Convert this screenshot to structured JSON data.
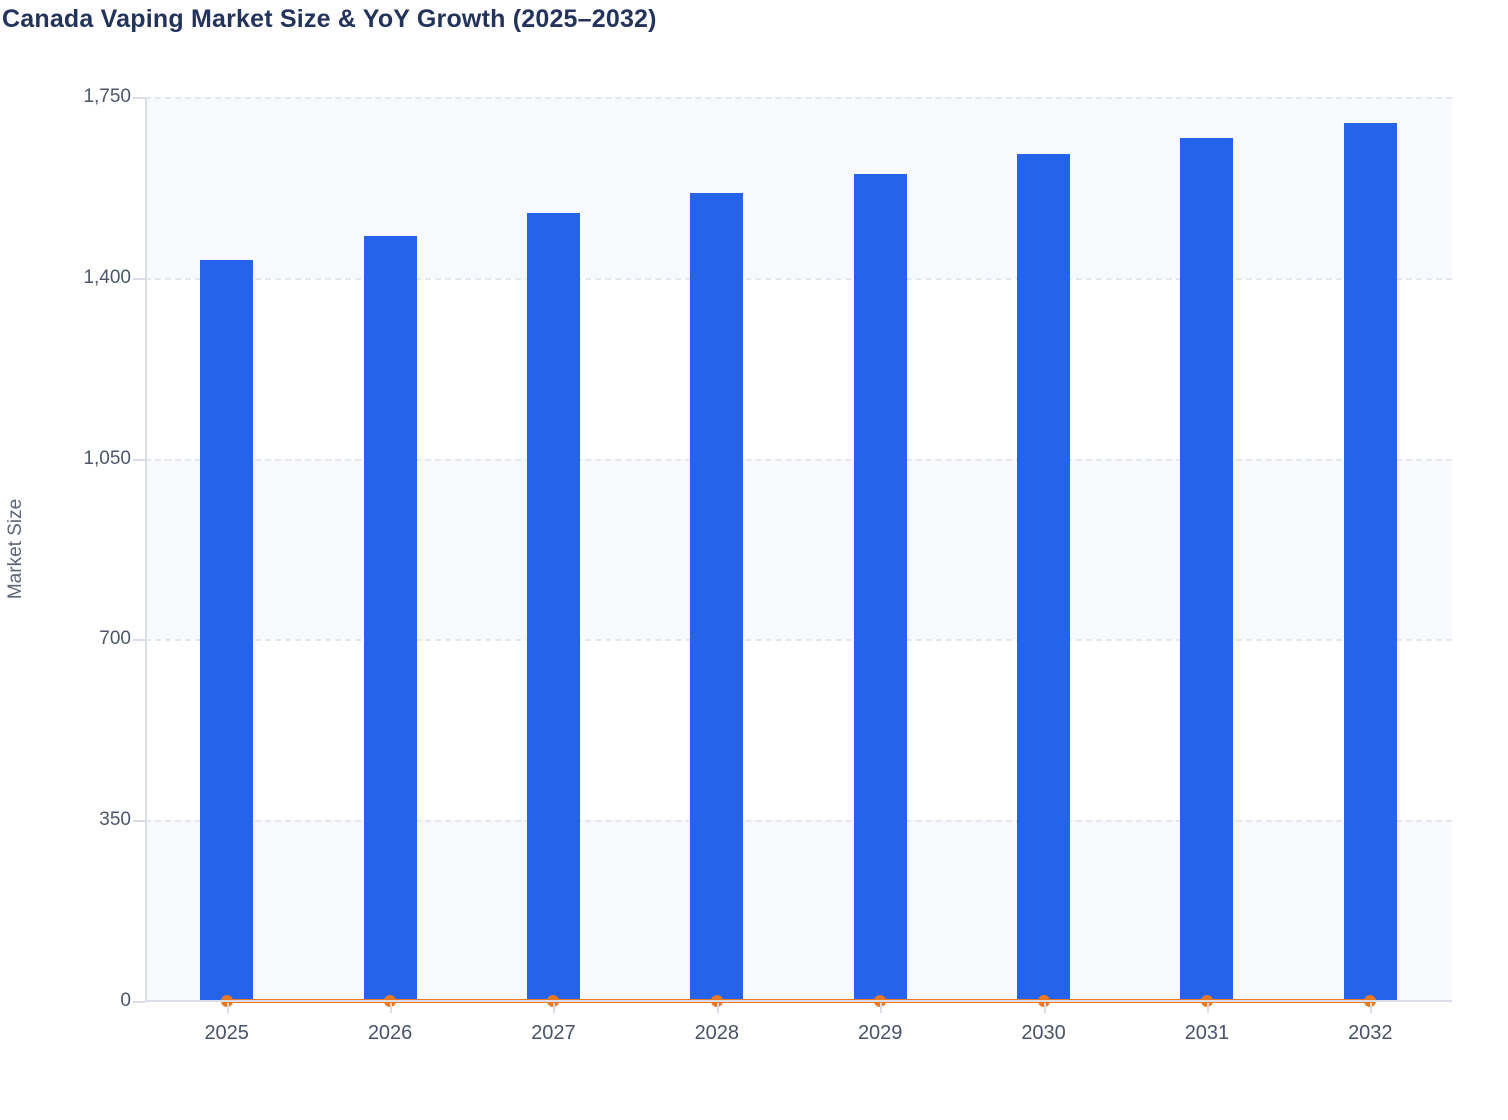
{
  "page": {
    "title": "Canada Vaping Market Size & YoY Growth (2025–2032)"
  },
  "chart_data": {
    "type": "bar",
    "title": "Canada Vaping Market Size & YoY Growth (2025–2032)",
    "categories": [
      "2025",
      "2026",
      "2027",
      "2028",
      "2029",
      "2030",
      "2031",
      "2032"
    ],
    "series": [
      {
        "name": "Market Size",
        "type": "bar",
        "color": "#2563eb",
        "values": [
          1435,
          1480,
          1525,
          1565,
          1600,
          1640,
          1670,
          1700
        ]
      },
      {
        "name": "YoY Growth",
        "type": "line",
        "color": "#f0791e",
        "marker": "circle",
        "values_on_left_axis": [
          0,
          0,
          0,
          0,
          0,
          0,
          0,
          0
        ]
      }
    ],
    "xlabel": "",
    "ylabel": "Market Size",
    "ylim": [
      0,
      1750
    ],
    "yticks": [
      0,
      350,
      700,
      1050,
      1400,
      1750
    ],
    "ytick_labels": [
      "0",
      "350",
      "700",
      "1,050",
      "1,400",
      "1,750"
    ],
    "grid": "horizontal-dashed",
    "band_fill": "alternating",
    "legend_position": "none",
    "plot_background": "#f8f9fc"
  }
}
